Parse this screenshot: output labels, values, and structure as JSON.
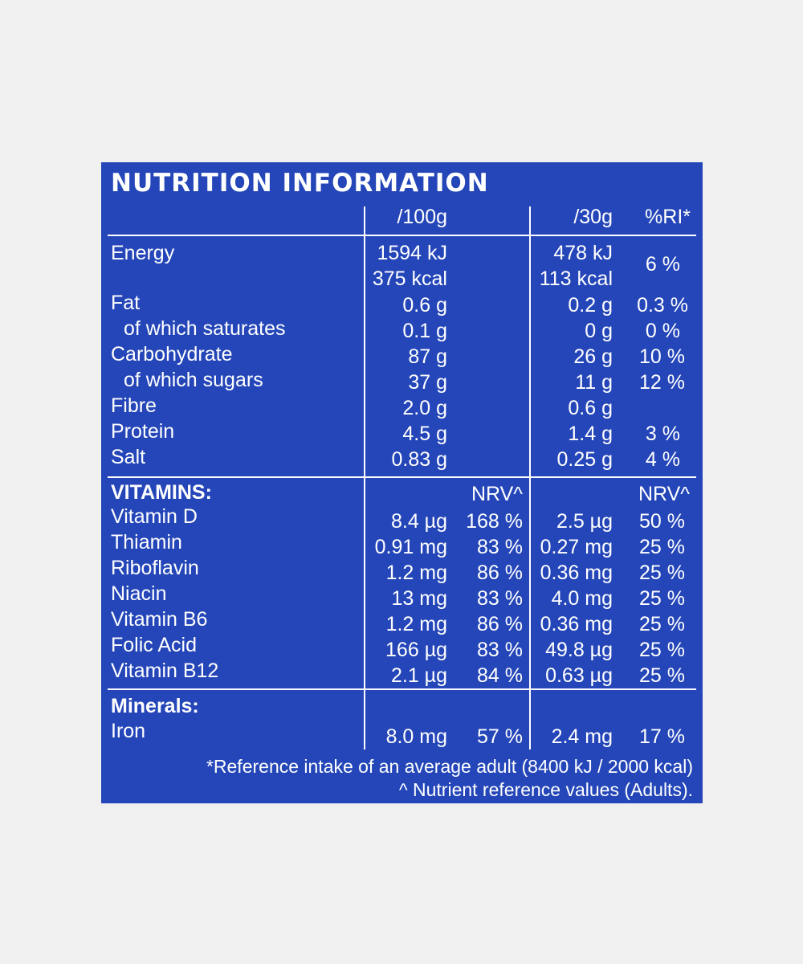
{
  "title": "NUTRITION INFORMATION",
  "headers": {
    "per100g": "/100g",
    "per30g": "/30g",
    "ri": "%RI*"
  },
  "energy": {
    "label": "Energy",
    "per100g_kj": "1594 kJ",
    "per100g_kcal": "375 kcal",
    "per30g_kj": "478 kJ",
    "per30g_kcal": "113 kcal",
    "ri": "6 %"
  },
  "nutrients": [
    {
      "label": "Fat",
      "per100g": "0.6 g",
      "per30g": "0.2 g",
      "ri": "0.3 %"
    },
    {
      "label": "of which saturates",
      "per100g": "0.1 g",
      "per30g": "0 g",
      "ri": "0 %"
    },
    {
      "label": "Carbohydrate",
      "per100g": "87 g",
      "per30g": "26 g",
      "ri": "10 %"
    },
    {
      "label": "of which sugars",
      "per100g": "37 g",
      "per30g": "11 g",
      "ri": "12 %"
    },
    {
      "label": "Fibre",
      "per100g": "2.0 g",
      "per30g": "0.6 g",
      "ri": ""
    },
    {
      "label": "Protein",
      "per100g": "4.5 g",
      "per30g": "1.4 g",
      "ri": "3 %"
    },
    {
      "label": "Salt",
      "per100g": "0.83 g",
      "per30g": "0.25 g",
      "ri": "4 %"
    }
  ],
  "vitamins": {
    "heading": "VITAMINS:",
    "nrv_label_100g": "NRV^",
    "nrv_label_30g": "NRV^",
    "rows": [
      {
        "label": "Vitamin D",
        "per100g": "8.4 µg",
        "nrv100": "168 %",
        "per30g": "2.5 µg",
        "nrv30": "50 %"
      },
      {
        "label": "Thiamin",
        "per100g": "0.91 mg",
        "nrv100": "83 %",
        "per30g": "0.27 mg",
        "nrv30": "25 %"
      },
      {
        "label": "Riboflavin",
        "per100g": "1.2 mg",
        "nrv100": "86 %",
        "per30g": "0.36 mg",
        "nrv30": "25 %"
      },
      {
        "label": "Niacin",
        "per100g": "13 mg",
        "nrv100": "83 %",
        "per30g": "4.0 mg",
        "nrv30": "25 %"
      },
      {
        "label": "Vitamin B6",
        "per100g": "1.2 mg",
        "nrv100": "86 %",
        "per30g": "0.36 mg",
        "nrv30": "25 %"
      },
      {
        "label": "Folic Acid",
        "per100g": "166 µg",
        "nrv100": "83 %",
        "per30g": "49.8 µg",
        "nrv30": "25 %"
      },
      {
        "label": "Vitamin B12",
        "per100g": "2.1 µg",
        "nrv100": "84 %",
        "per30g": "0.63 µg",
        "nrv30": "25 %"
      }
    ]
  },
  "minerals": {
    "heading": "Minerals:",
    "rows": [
      {
        "label": "Iron",
        "per100g": "8.0 mg",
        "nrv100": "57 %",
        "per30g": "2.4 mg",
        "nrv30": "17 %"
      }
    ]
  },
  "footnotes": {
    "ri": "*Reference intake of an average adult (8400 kJ / 2000 kcal)",
    "nrv": "^ Nutrient reference values (Adults)."
  },
  "colors": {
    "background": "#f0f0f0",
    "panel": "#2446b8",
    "text": "#ffffff"
  }
}
